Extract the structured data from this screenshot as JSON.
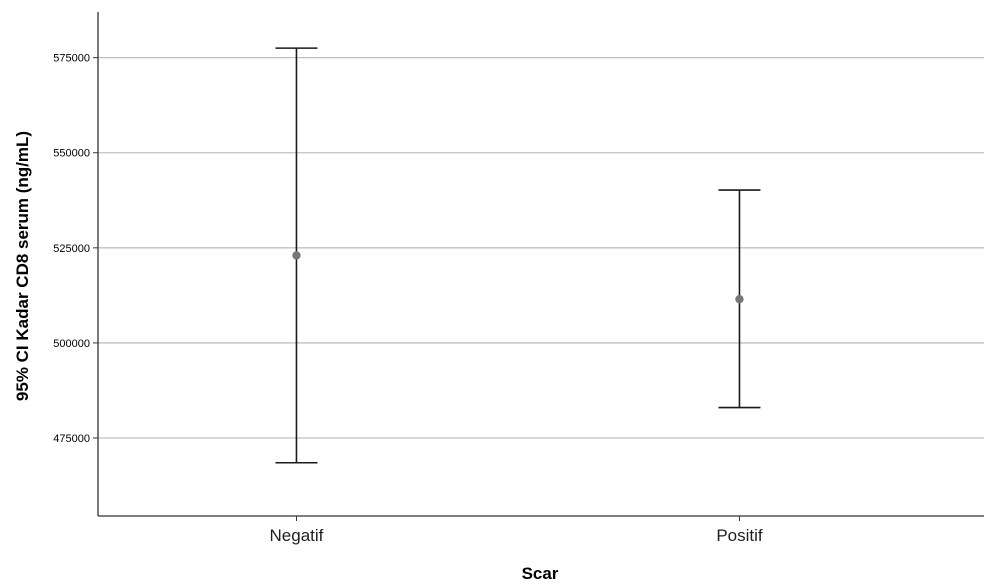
{
  "chart_data": {
    "type": "errorbar",
    "xlabel": "Scar",
    "ylabel": "95% CI Kadar CD8 serum (ng/mL)",
    "categories": [
      "Negatif",
      "Positif"
    ],
    "series": [
      {
        "means": [
          523000,
          511500
        ],
        "lower": [
          468500,
          483000
        ],
        "upper": [
          577500,
          540200
        ]
      }
    ],
    "yticks": [
      475000,
      500000,
      525000,
      550000,
      575000
    ],
    "ytick_labels": [
      "475000",
      "500000",
      "525000",
      "550000",
      "575000"
    ],
    "ylim": [
      454500,
      587000
    ],
    "grid": true,
    "colors": {
      "errorbar": "#1a1a1a",
      "marker": "#777777",
      "gridline": "#c0c0c0",
      "axis": "#333333"
    }
  }
}
